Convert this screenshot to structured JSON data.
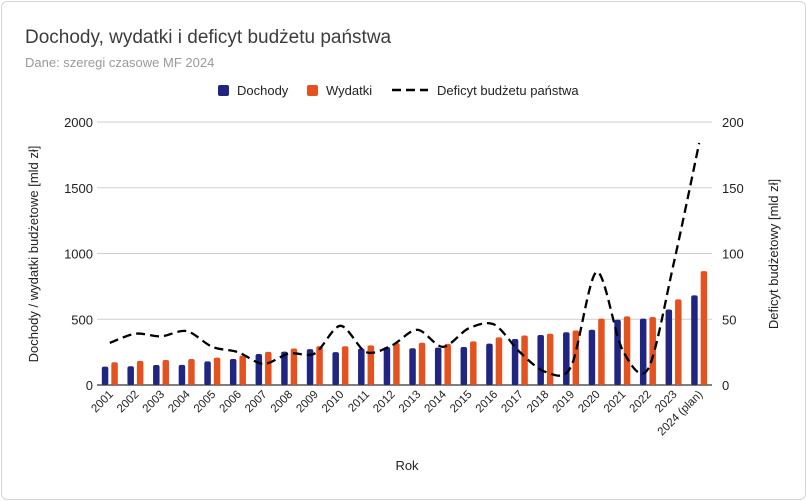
{
  "chart_data": {
    "type": "bar",
    "title": "Dochody, wydatki i deficyt budżetu państwa",
    "subtitle": "Dane: szeregi czasowe MF 2024",
    "xlabel": "Rok",
    "ylabel": "Dochody / wydatki budżetowe [mld zł]",
    "y2label": "Deficyt budżetowy [mld zł]",
    "ylim": [
      0,
      2000
    ],
    "y2lim": [
      0,
      200
    ],
    "yticks": [
      "0",
      "500",
      "1000",
      "1500",
      "2000"
    ],
    "y2ticks": [
      "0",
      "50",
      "100",
      "150",
      "200"
    ],
    "grid": true,
    "legend_position": "top",
    "categories": [
      "2001",
      "2002",
      "2003",
      "2004",
      "2005",
      "2006",
      "2007",
      "2008",
      "2009",
      "2010",
      "2011",
      "2012",
      "2013",
      "2014",
      "2015",
      "2016",
      "2017",
      "2018",
      "2019",
      "2020",
      "2021",
      "2022",
      "2023",
      "2024 (plan)"
    ],
    "series": [
      {
        "name": "Dochody",
        "type": "bar",
        "axis": "left",
        "color": "#1f2580",
        "values": [
          140,
          143,
          152,
          153,
          180,
          198,
          236,
          254,
          273,
          250,
          278,
          288,
          279,
          284,
          289,
          315,
          350,
          380,
          401,
          420,
          496,
          505,
          574,
          682
        ]
      },
      {
        "name": "Wydatki",
        "type": "bar",
        "axis": "left",
        "color": "#e4521f",
        "values": [
          173,
          183,
          190,
          198,
          208,
          223,
          252,
          278,
          296,
          295,
          301,
          318,
          321,
          313,
          332,
          362,
          376,
          390,
          414,
          505,
          522,
          517,
          651,
          866
        ]
      },
      {
        "name": "Deficyt budżetu państwa",
        "type": "line",
        "axis": "right",
        "style": "dashed",
        "color": "#000000",
        "values": [
          32,
          39,
          37,
          41,
          29,
          25,
          16,
          24,
          24,
          45,
          25,
          30,
          42,
          29,
          43,
          46,
          25,
          10,
          14,
          86,
          27,
          12,
          92,
          184
        ]
      }
    ]
  }
}
